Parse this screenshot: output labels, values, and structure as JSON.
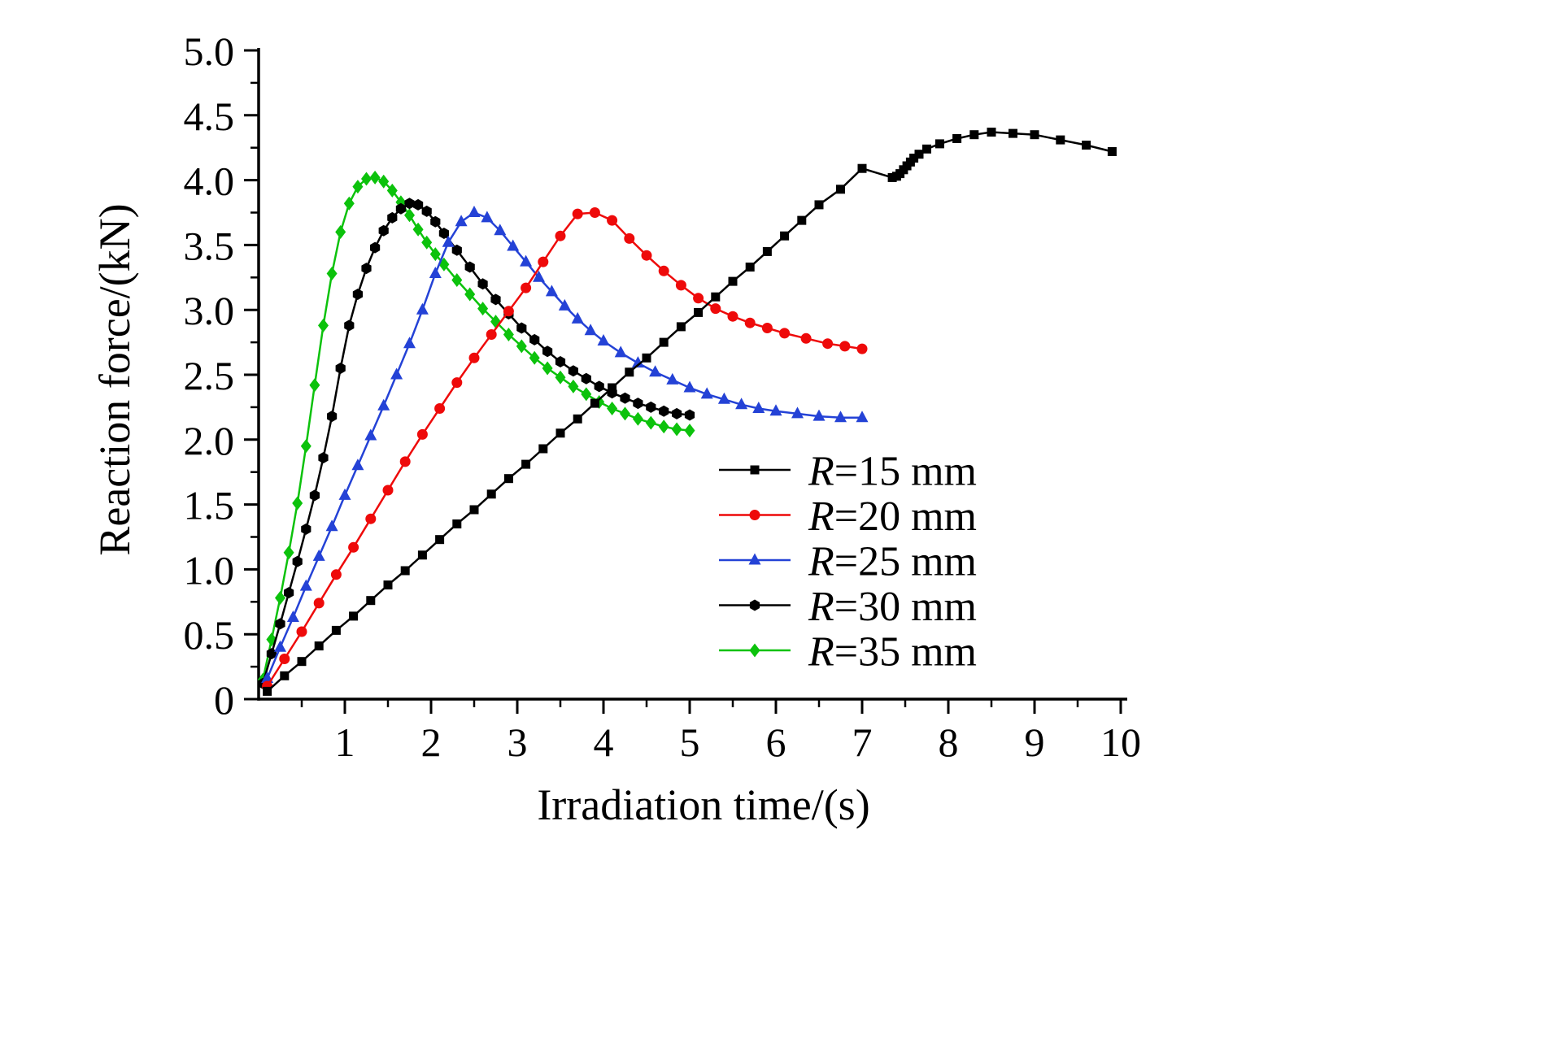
{
  "figure": {
    "background": "#ffffff",
    "axis_color": "#000000"
  },
  "chart_data": {
    "type": "line",
    "title": "",
    "xlabel": "Irradiation time/(s)",
    "ylabel": "Reaction force/(kN)",
    "xlim": [
      0,
      10
    ],
    "ylim": [
      0,
      5.0
    ],
    "xticks": [
      "1",
      "2",
      "3",
      "4",
      "5",
      "6",
      "7",
      "8",
      "9",
      "10"
    ],
    "yticks": [
      "0",
      "0.5",
      "1.0",
      "1.5",
      "2.0",
      "2.5",
      "3.0",
      "3.5",
      "4.0",
      "4.5",
      "5.0"
    ],
    "grid": false,
    "legend_position": "inside lower-right area",
    "series": [
      {
        "id": "r15",
        "name": "R=15 mm",
        "label_italic": "R",
        "label_rest": "=15 mm",
        "color": "#000000",
        "marker": "square",
        "points": [
          [
            0.1,
            0.06
          ],
          [
            0.3,
            0.18
          ],
          [
            0.5,
            0.29
          ],
          [
            0.7,
            0.41
          ],
          [
            0.9,
            0.53
          ],
          [
            1.1,
            0.64
          ],
          [
            1.3,
            0.76
          ],
          [
            1.5,
            0.88
          ],
          [
            1.7,
            0.99
          ],
          [
            1.9,
            1.11
          ],
          [
            2.1,
            1.23
          ],
          [
            2.3,
            1.35
          ],
          [
            2.5,
            1.46
          ],
          [
            2.7,
            1.58
          ],
          [
            2.9,
            1.7
          ],
          [
            3.1,
            1.81
          ],
          [
            3.3,
            1.93
          ],
          [
            3.5,
            2.05
          ],
          [
            3.7,
            2.16
          ],
          [
            3.9,
            2.28
          ],
          [
            4.1,
            2.4
          ],
          [
            4.3,
            2.52
          ],
          [
            4.5,
            2.63
          ],
          [
            4.7,
            2.75
          ],
          [
            4.9,
            2.87
          ],
          [
            5.1,
            2.98
          ],
          [
            5.3,
            3.1
          ],
          [
            5.5,
            3.22
          ],
          [
            5.7,
            3.33
          ],
          [
            5.9,
            3.45
          ],
          [
            6.1,
            3.57
          ],
          [
            6.3,
            3.69
          ],
          [
            6.5,
            3.81
          ],
          [
            6.75,
            3.93
          ],
          [
            7.0,
            4.09
          ],
          [
            7.35,
            4.02
          ],
          [
            7.4,
            4.03
          ],
          [
            7.44,
            4.05
          ],
          [
            7.48,
            4.08
          ],
          [
            7.52,
            4.11
          ],
          [
            7.56,
            4.14
          ],
          [
            7.6,
            4.17
          ],
          [
            7.66,
            4.2
          ],
          [
            7.75,
            4.24
          ],
          [
            7.9,
            4.28
          ],
          [
            8.1,
            4.32
          ],
          [
            8.3,
            4.35
          ],
          [
            8.5,
            4.37
          ],
          [
            8.75,
            4.36
          ],
          [
            9.0,
            4.35
          ],
          [
            9.3,
            4.31
          ],
          [
            9.6,
            4.27
          ],
          [
            9.9,
            4.22
          ]
        ]
      },
      {
        "id": "r20",
        "name": "R=20 mm",
        "label_italic": "R",
        "label_rest": "=20 mm",
        "color": "#ee0a0a",
        "marker": "circle",
        "points": [
          [
            0.1,
            0.1
          ],
          [
            0.3,
            0.31
          ],
          [
            0.5,
            0.52
          ],
          [
            0.7,
            0.74
          ],
          [
            0.9,
            0.96
          ],
          [
            1.1,
            1.17
          ],
          [
            1.3,
            1.39
          ],
          [
            1.5,
            1.61
          ],
          [
            1.7,
            1.83
          ],
          [
            1.9,
            2.04
          ],
          [
            2.1,
            2.24
          ],
          [
            2.3,
            2.44
          ],
          [
            2.5,
            2.63
          ],
          [
            2.7,
            2.81
          ],
          [
            2.9,
            2.99
          ],
          [
            3.1,
            3.17
          ],
          [
            3.3,
            3.37
          ],
          [
            3.5,
            3.57
          ],
          [
            3.7,
            3.74
          ],
          [
            3.9,
            3.75
          ],
          [
            4.1,
            3.69
          ],
          [
            4.3,
            3.55
          ],
          [
            4.5,
            3.42
          ],
          [
            4.7,
            3.3
          ],
          [
            4.9,
            3.19
          ],
          [
            5.1,
            3.09
          ],
          [
            5.3,
            3.01
          ],
          [
            5.5,
            2.95
          ],
          [
            5.7,
            2.9
          ],
          [
            5.9,
            2.86
          ],
          [
            6.1,
            2.82
          ],
          [
            6.35,
            2.78
          ],
          [
            6.6,
            2.74
          ],
          [
            6.8,
            2.72
          ],
          [
            7.0,
            2.7
          ]
        ]
      },
      {
        "id": "r25",
        "name": "R=25 mm",
        "label_italic": "R",
        "label_rest": "=25 mm",
        "color": "#2442d6",
        "marker": "triangle-up",
        "points": [
          [
            0.1,
            0.16
          ],
          [
            0.25,
            0.4
          ],
          [
            0.4,
            0.63
          ],
          [
            0.55,
            0.87
          ],
          [
            0.7,
            1.1
          ],
          [
            0.85,
            1.33
          ],
          [
            1.0,
            1.57
          ],
          [
            1.15,
            1.8
          ],
          [
            1.3,
            2.03
          ],
          [
            1.45,
            2.26
          ],
          [
            1.6,
            2.5
          ],
          [
            1.75,
            2.74
          ],
          [
            1.9,
            3.0
          ],
          [
            2.05,
            3.28
          ],
          [
            2.2,
            3.52
          ],
          [
            2.35,
            3.68
          ],
          [
            2.5,
            3.75
          ],
          [
            2.65,
            3.71
          ],
          [
            2.8,
            3.61
          ],
          [
            2.95,
            3.49
          ],
          [
            3.1,
            3.37
          ],
          [
            3.25,
            3.25
          ],
          [
            3.4,
            3.14
          ],
          [
            3.55,
            3.03
          ],
          [
            3.7,
            2.93
          ],
          [
            3.85,
            2.84
          ],
          [
            4.0,
            2.76
          ],
          [
            4.2,
            2.67
          ],
          [
            4.4,
            2.59
          ],
          [
            4.6,
            2.52
          ],
          [
            4.8,
            2.46
          ],
          [
            5.0,
            2.4
          ],
          [
            5.2,
            2.35
          ],
          [
            5.4,
            2.31
          ],
          [
            5.6,
            2.27
          ],
          [
            5.8,
            2.24
          ],
          [
            6.0,
            2.22
          ],
          [
            6.25,
            2.2
          ],
          [
            6.5,
            2.18
          ],
          [
            6.75,
            2.17
          ],
          [
            7.0,
            2.17
          ]
        ]
      },
      {
        "id": "r30",
        "name": "R=30 mm",
        "label_italic": "R",
        "label_rest": "=30 mm",
        "color": "#000000",
        "marker": "hexagon",
        "points": [
          [
            0.05,
            0.12
          ],
          [
            0.15,
            0.35
          ],
          [
            0.25,
            0.58
          ],
          [
            0.35,
            0.82
          ],
          [
            0.45,
            1.06
          ],
          [
            0.55,
            1.31
          ],
          [
            0.65,
            1.57
          ],
          [
            0.75,
            1.86
          ],
          [
            0.85,
            2.18
          ],
          [
            0.95,
            2.55
          ],
          [
            1.05,
            2.88
          ],
          [
            1.15,
            3.12
          ],
          [
            1.25,
            3.32
          ],
          [
            1.35,
            3.48
          ],
          [
            1.45,
            3.61
          ],
          [
            1.55,
            3.71
          ],
          [
            1.65,
            3.78
          ],
          [
            1.75,
            3.82
          ],
          [
            1.85,
            3.81
          ],
          [
            1.95,
            3.76
          ],
          [
            2.05,
            3.68
          ],
          [
            2.15,
            3.59
          ],
          [
            2.3,
            3.46
          ],
          [
            2.45,
            3.33
          ],
          [
            2.6,
            3.2
          ],
          [
            2.75,
            3.08
          ],
          [
            2.9,
            2.97
          ],
          [
            3.05,
            2.86
          ],
          [
            3.2,
            2.77
          ],
          [
            3.35,
            2.68
          ],
          [
            3.5,
            2.6
          ],
          [
            3.65,
            2.53
          ],
          [
            3.8,
            2.47
          ],
          [
            3.95,
            2.41
          ],
          [
            4.1,
            2.36
          ],
          [
            4.25,
            2.32
          ],
          [
            4.4,
            2.28
          ],
          [
            4.55,
            2.25
          ],
          [
            4.7,
            2.22
          ],
          [
            4.85,
            2.2
          ],
          [
            5.0,
            2.19
          ]
        ]
      },
      {
        "id": "r35",
        "name": "R=35 mm",
        "label_italic": "R",
        "label_rest": "=35 mm",
        "color": "#0cc20c",
        "marker": "diamond",
        "points": [
          [
            0.05,
            0.15
          ],
          [
            0.15,
            0.46
          ],
          [
            0.25,
            0.78
          ],
          [
            0.35,
            1.13
          ],
          [
            0.45,
            1.51
          ],
          [
            0.55,
            1.95
          ],
          [
            0.65,
            2.42
          ],
          [
            0.75,
            2.88
          ],
          [
            0.85,
            3.28
          ],
          [
            0.95,
            3.6
          ],
          [
            1.05,
            3.82
          ],
          [
            1.15,
            3.95
          ],
          [
            1.25,
            4.01
          ],
          [
            1.35,
            4.02
          ],
          [
            1.45,
            3.99
          ],
          [
            1.55,
            3.92
          ],
          [
            1.65,
            3.83
          ],
          [
            1.75,
            3.73
          ],
          [
            1.85,
            3.62
          ],
          [
            1.95,
            3.52
          ],
          [
            2.05,
            3.43
          ],
          [
            2.15,
            3.35
          ],
          [
            2.3,
            3.23
          ],
          [
            2.45,
            3.12
          ],
          [
            2.6,
            3.01
          ],
          [
            2.75,
            2.91
          ],
          [
            2.9,
            2.81
          ],
          [
            3.05,
            2.72
          ],
          [
            3.2,
            2.63
          ],
          [
            3.35,
            2.55
          ],
          [
            3.5,
            2.48
          ],
          [
            3.65,
            2.41
          ],
          [
            3.8,
            2.35
          ],
          [
            3.95,
            2.29
          ],
          [
            4.1,
            2.24
          ],
          [
            4.25,
            2.2
          ],
          [
            4.4,
            2.16
          ],
          [
            4.55,
            2.13
          ],
          [
            4.7,
            2.1
          ],
          [
            4.85,
            2.08
          ],
          [
            5.0,
            2.07
          ]
        ]
      }
    ]
  }
}
